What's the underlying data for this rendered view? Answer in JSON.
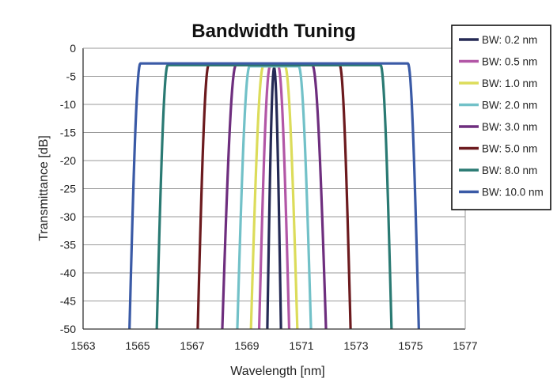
{
  "chart_data": {
    "type": "line",
    "title": "Bandwidth Tuning",
    "xlabel": "Wavelength [nm]",
    "ylabel": "Transmittance [dB]",
    "xlim": [
      1563,
      1577
    ],
    "ylim": [
      -50,
      0
    ],
    "xticks": [
      "1563",
      "1565",
      "1567",
      "1569",
      "1571",
      "1573",
      "1575",
      "1577"
    ],
    "yticks": [
      "0",
      "-5",
      "-10",
      "-15",
      "-20",
      "-25",
      "-30",
      "-35",
      "-40",
      "-45",
      "-50"
    ],
    "grid": true,
    "legend_position": "top-right",
    "center_wavelength": 1570.0,
    "series": [
      {
        "name": "BW: 0.2 nm",
        "color": "#252a55",
        "bandwidth": 0.2,
        "top_width": 0.0,
        "bottom_width": 0.5,
        "peak_db": -3.5
      },
      {
        "name": "BW: 0.5 nm",
        "color": "#b256a6",
        "bandwidth": 0.5,
        "top_width": 0.3,
        "bottom_width": 1.1,
        "peak_db": -3.2
      },
      {
        "name": "BW: 1.0 nm",
        "color": "#dcdc5a",
        "bandwidth": 1.0,
        "top_width": 0.8,
        "bottom_width": 1.7,
        "peak_db": -3.2
      },
      {
        "name": "BW: 2.0 nm",
        "color": "#72c1c8",
        "bandwidth": 2.0,
        "top_width": 1.8,
        "bottom_width": 2.7,
        "peak_db": -3.2
      },
      {
        "name": "BW: 3.0 nm",
        "color": "#6e2e7e",
        "bandwidth": 3.0,
        "top_width": 2.8,
        "bottom_width": 3.8,
        "peak_db": -3.0
      },
      {
        "name": "BW: 5.0 nm",
        "color": "#6c1a1e",
        "bandwidth": 5.0,
        "top_width": 4.8,
        "bottom_width": 5.6,
        "peak_db": -3.0
      },
      {
        "name": "BW: 8.0 nm",
        "color": "#2a7a73",
        "bandwidth": 8.0,
        "top_width": 7.8,
        "bottom_width": 8.6,
        "peak_db": -3.0
      },
      {
        "name": "BW: 10.0 nm",
        "color": "#3a5aa6",
        "bandwidth": 10.0,
        "top_width": 9.8,
        "bottom_width": 10.6,
        "peak_db": -2.7
      }
    ]
  }
}
